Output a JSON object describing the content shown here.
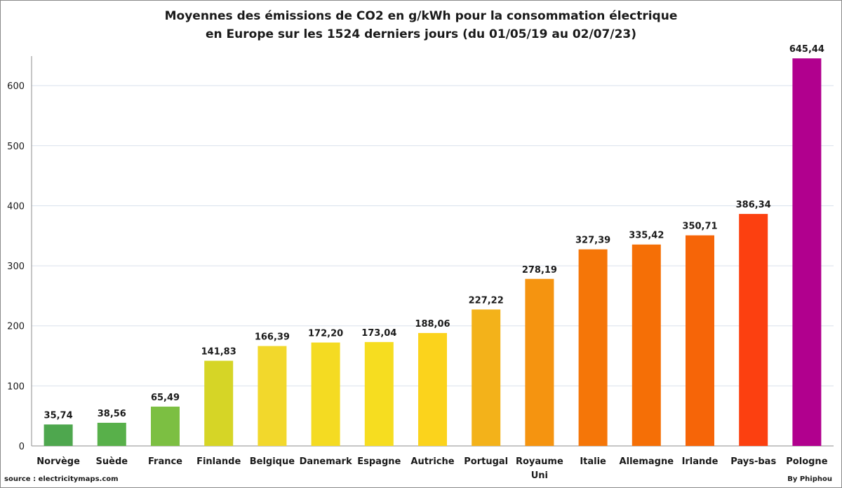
{
  "chart_data": {
    "type": "bar",
    "title": "Moyennes des émissions de CO2 en g/kWh pour la consommation électrique",
    "subtitle": "en Europe sur les 1524 derniers jours (du 01/05/19 au 02/07/23)",
    "categories": [
      "Norvège",
      "Suède",
      "France",
      "Finlande",
      "Belgique",
      "Danemark",
      "Espagne",
      "Autriche",
      "Portugal",
      "Royaume Uni",
      "Italie",
      "Allemagne",
      "Irlande",
      "Pays-bas",
      "Pologne"
    ],
    "category_lines": [
      [
        "Norvège"
      ],
      [
        "Suède"
      ],
      [
        "France"
      ],
      [
        "Finlande"
      ],
      [
        "Belgique"
      ],
      [
        "Danemark"
      ],
      [
        "Espagne"
      ],
      [
        "Autriche"
      ],
      [
        "Portugal"
      ],
      [
        "Royaume",
        "Uni"
      ],
      [
        "Italie"
      ],
      [
        "Allemagne"
      ],
      [
        "Irlande"
      ],
      [
        "Pays-bas"
      ],
      [
        "Pologne"
      ]
    ],
    "values": [
      35.74,
      38.56,
      65.49,
      141.83,
      166.39,
      172.2,
      173.04,
      188.06,
      227.22,
      278.19,
      327.39,
      335.42,
      350.71,
      386.34,
      645.44
    ],
    "value_labels": [
      "35,74",
      "38,56",
      "65,49",
      "141,83",
      "166,39",
      "172,20",
      "173,04",
      "188,06",
      "227,22",
      "278,19",
      "327,39",
      "335,42",
      "350,71",
      "386,34",
      "645,44"
    ],
    "colors": [
      "#4ea74e",
      "#58b04a",
      "#7cbf42",
      "#d6d526",
      "#f2d82c",
      "#f4db22",
      "#f6dd20",
      "#fbd31c",
      "#f3b21a",
      "#f59410",
      "#f57608",
      "#f56f06",
      "#f66508",
      "#fc4010",
      "#b1008e"
    ],
    "yticks": [
      "0",
      "100",
      "200",
      "300",
      "400",
      "500",
      "600"
    ],
    "ylim": [
      0,
      660
    ],
    "grid": true,
    "xlabel": "",
    "ylabel": ""
  },
  "footer": {
    "source": "source : electricitymaps.com",
    "credit": "By Phiphou"
  }
}
